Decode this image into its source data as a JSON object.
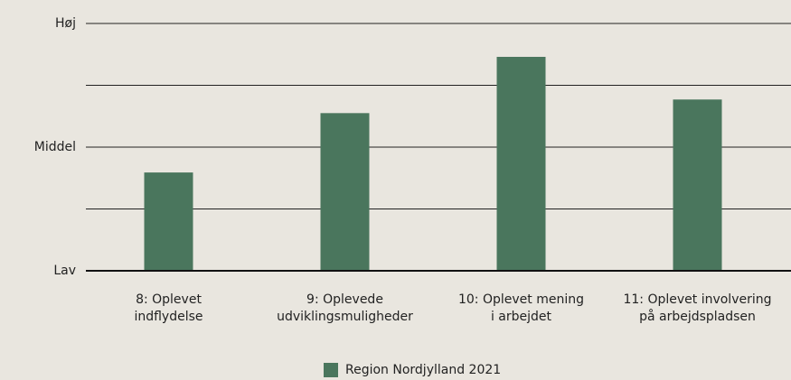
{
  "chart_data": {
    "type": "bar",
    "categories": [
      [
        "8: Oplevet",
        "indflydelse"
      ],
      [
        "9: Oplevede",
        "udviklingsmuligheder"
      ],
      [
        "10: Oplevet mening",
        "i arbejdet"
      ],
      [
        "11: Oplevet involvering",
        "på arbejdspladsen"
      ]
    ],
    "series": [
      {
        "name": "Region Nordjylland 2021",
        "color": "#4a765d",
        "values": [
          1.59,
          2.55,
          3.46,
          2.77
        ]
      }
    ],
    "ylim": [
      0,
      4
    ],
    "yticks": [
      {
        "value": 0,
        "label": "Lav"
      },
      {
        "value": 2,
        "label": "Middel"
      },
      {
        "value": 4,
        "label": "Høj"
      }
    ],
    "minor_yticks": [
      1,
      3
    ],
    "grid": true,
    "legend": "bottom"
  }
}
